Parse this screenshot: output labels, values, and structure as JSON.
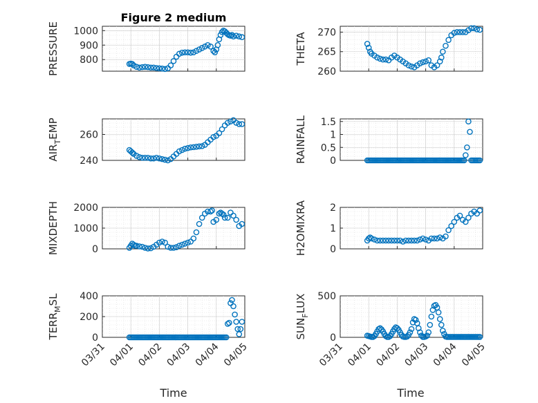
{
  "colors": {
    "marker": "#0072BD"
  },
  "figure": {
    "title": "Figure 2 medium",
    "xlabel_left": "Time",
    "xlabel_right": "Time"
  },
  "chart_data": [
    {
      "type": "scatter",
      "id": "pressure",
      "title": "Figure 2 medium",
      "ylabel": "PRESSURE",
      "ylabel_sub": "",
      "xlim": [
        0,
        5
      ],
      "ylim": [
        720,
        1030
      ],
      "yticks": [
        800,
        900,
        1000
      ],
      "ytick_labels": [
        "800",
        "900",
        "1000"
      ],
      "x": [
        0.95,
        1.0,
        1.05,
        1.1,
        1.2,
        1.3,
        1.4,
        1.5,
        1.6,
        1.7,
        1.8,
        1.9,
        2.0,
        2.1,
        2.2,
        2.3,
        2.4,
        2.5,
        2.6,
        2.7,
        2.8,
        2.9,
        3.0,
        3.1,
        3.2,
        3.3,
        3.4,
        3.5,
        3.6,
        3.7,
        3.8,
        3.9,
        3.95,
        4.0,
        4.05,
        4.1,
        4.15,
        4.2,
        4.25,
        4.3,
        4.35,
        4.4,
        4.45,
        4.5,
        4.55,
        4.6,
        4.7,
        4.8,
        4.9
      ],
      "y": [
        770,
        772,
        770,
        760,
        750,
        745,
        748,
        750,
        748,
        745,
        745,
        742,
        740,
        738,
        735,
        740,
        760,
        790,
        820,
        840,
        848,
        850,
        850,
        848,
        850,
        860,
        870,
        880,
        890,
        900,
        890,
        860,
        850,
        870,
        900,
        940,
        970,
        990,
        1000,
        995,
        985,
        975,
        968,
        965,
        970,
        960,
        965,
        960,
        955
      ]
    },
    {
      "type": "scatter",
      "id": "theta",
      "title": "",
      "ylabel": "THETA",
      "ylabel_sub": "",
      "xlim": [
        0,
        5
      ],
      "ylim": [
        260,
        271.5
      ],
      "yticks": [
        260,
        265,
        270
      ],
      "ytick_labels": [
        "260",
        "265",
        "270"
      ],
      "x": [
        0.95,
        1.0,
        1.05,
        1.1,
        1.2,
        1.3,
        1.4,
        1.5,
        1.6,
        1.7,
        1.8,
        1.9,
        2.0,
        2.1,
        2.2,
        2.3,
        2.4,
        2.5,
        2.6,
        2.7,
        2.8,
        2.9,
        3.0,
        3.1,
        3.2,
        3.3,
        3.4,
        3.5,
        3.55,
        3.6,
        3.7,
        3.8,
        3.9,
        4.0,
        4.1,
        4.2,
        4.3,
        4.4,
        4.5,
        4.6,
        4.7,
        4.8,
        4.9
      ],
      "y": [
        267,
        266,
        265,
        264.5,
        264,
        263.5,
        263.2,
        263,
        263,
        262.8,
        263.5,
        264,
        263.5,
        263,
        262.5,
        262,
        261.5,
        261.2,
        261,
        261.5,
        262,
        262.3,
        262.5,
        262.8,
        261.5,
        261,
        261.5,
        262.5,
        263.5,
        265,
        266.5,
        268,
        269.2,
        269.8,
        270,
        270,
        270,
        270,
        270.5,
        271,
        271,
        270.7,
        270.6
      ]
    },
    {
      "type": "scatter",
      "id": "air_temp",
      "title": "",
      "ylabel": "AIR",
      "ylabel_sub": "T",
      "ylabel_suffix": "EMP",
      "xlim": [
        0,
        5
      ],
      "ylim": [
        240,
        272
      ],
      "yticks": [
        240,
        260
      ],
      "ytick_labels": [
        "240",
        "260"
      ],
      "x": [
        0.95,
        1.0,
        1.05,
        1.1,
        1.2,
        1.3,
        1.4,
        1.5,
        1.6,
        1.7,
        1.8,
        1.9,
        2.0,
        2.1,
        2.2,
        2.3,
        2.4,
        2.5,
        2.6,
        2.7,
        2.8,
        2.9,
        3.0,
        3.1,
        3.2,
        3.3,
        3.4,
        3.5,
        3.6,
        3.7,
        3.8,
        3.9,
        4.0,
        4.1,
        4.2,
        4.3,
        4.4,
        4.5,
        4.6,
        4.7,
        4.8,
        4.9
      ],
      "y": [
        248,
        247,
        246,
        245,
        243.5,
        242.5,
        242,
        242,
        242,
        241.5,
        241.5,
        242,
        241.5,
        241,
        240.5,
        240,
        241,
        243,
        245,
        247,
        248,
        249,
        249.5,
        250,
        250.2,
        250.5,
        250.8,
        251,
        252,
        254,
        256,
        258,
        259,
        261,
        264,
        267,
        269,
        270,
        271,
        269,
        268,
        268
      ]
    },
    {
      "type": "scatter",
      "id": "rainfall",
      "title": "",
      "ylabel": "RAINFALL",
      "ylabel_sub": "",
      "xlim": [
        0,
        5
      ],
      "ylim": [
        0,
        1.6
      ],
      "yticks": [
        0,
        0.5,
        1,
        1.5
      ],
      "ytick_labels": [
        "0",
        "0.5",
        "1",
        "1.5"
      ],
      "x": [
        0.95,
        1.0,
        1.05,
        1.1,
        1.15,
        1.2,
        1.25,
        1.3,
        1.35,
        1.4,
        1.45,
        1.5,
        1.55,
        1.6,
        1.65,
        1.7,
        1.75,
        1.8,
        1.85,
        1.9,
        1.95,
        2.0,
        2.05,
        2.1,
        2.15,
        2.2,
        2.25,
        2.3,
        2.35,
        2.4,
        2.45,
        2.5,
        2.55,
        2.6,
        2.65,
        2.7,
        2.75,
        2.8,
        2.85,
        2.9,
        2.95,
        3.0,
        3.05,
        3.1,
        3.15,
        3.2,
        3.25,
        3.3,
        3.35,
        3.4,
        3.45,
        3.5,
        3.55,
        3.6,
        3.65,
        3.7,
        3.75,
        3.8,
        3.85,
        3.9,
        3.95,
        4.0,
        4.05,
        4.1,
        4.15,
        4.2,
        4.25,
        4.3,
        4.35,
        4.4,
        4.45,
        4.5,
        4.55,
        4.6,
        4.65,
        4.7,
        4.75,
        4.8,
        4.85,
        4.9
      ],
      "y": [
        0,
        0,
        0,
        0,
        0,
        0,
        0,
        0,
        0,
        0,
        0,
        0,
        0,
        0,
        0,
        0,
        0,
        0,
        0,
        0,
        0,
        0,
        0,
        0,
        0,
        0,
        0,
        0,
        0,
        0,
        0,
        0,
        0,
        0,
        0,
        0,
        0,
        0,
        0,
        0,
        0,
        0,
        0,
        0,
        0,
        0,
        0,
        0,
        0,
        0,
        0,
        0,
        0,
        0,
        0,
        0,
        0,
        0,
        0,
        0,
        0,
        0,
        0,
        0,
        0,
        0,
        0,
        0,
        0,
        0.2,
        0.5,
        1.5,
        1.1,
        0,
        0,
        0,
        0,
        0,
        0,
        0
      ]
    },
    {
      "type": "scatter",
      "id": "mixdepth",
      "title": "",
      "ylabel": "MIXDEPTH",
      "ylabel_sub": "",
      "xlim": [
        0,
        5
      ],
      "ylim": [
        0,
        2000
      ],
      "yticks": [
        0,
        1000,
        2000
      ],
      "ytick_labels": [
        "0",
        "1000",
        "2000"
      ],
      "x": [
        0.95,
        1.0,
        1.05,
        1.1,
        1.15,
        1.2,
        1.3,
        1.4,
        1.5,
        1.6,
        1.7,
        1.8,
        1.9,
        2.0,
        2.1,
        2.2,
        2.3,
        2.4,
        2.5,
        2.6,
        2.7,
        2.8,
        2.9,
        3.0,
        3.1,
        3.2,
        3.3,
        3.4,
        3.5,
        3.6,
        3.7,
        3.8,
        3.85,
        3.9,
        4.0,
        4.1,
        4.15,
        4.2,
        4.25,
        4.3,
        4.4,
        4.5,
        4.6,
        4.7,
        4.8,
        4.9
      ],
      "y": [
        50,
        150,
        250,
        200,
        150,
        150,
        120,
        100,
        50,
        20,
        30,
        100,
        200,
        300,
        350,
        300,
        100,
        50,
        50,
        80,
        150,
        200,
        250,
        300,
        350,
        500,
        800,
        1200,
        1500,
        1700,
        1800,
        1800,
        1850,
        1300,
        1400,
        1700,
        1750,
        1700,
        1650,
        1500,
        1500,
        1750,
        1600,
        1400,
        1100,
        1200
      ]
    },
    {
      "type": "scatter",
      "id": "h2omixra",
      "title": "",
      "ylabel": "H2OMIXRA",
      "ylabel_sub": "",
      "xlim": [
        0,
        5
      ],
      "ylim": [
        0,
        2
      ],
      "yticks": [
        0,
        1,
        2
      ],
      "ytick_labels": [
        "0",
        "1",
        "2"
      ],
      "x": [
        0.95,
        1.0,
        1.05,
        1.1,
        1.2,
        1.3,
        1.4,
        1.5,
        1.6,
        1.7,
        1.8,
        1.9,
        2.0,
        2.1,
        2.2,
        2.3,
        2.4,
        2.5,
        2.6,
        2.7,
        2.8,
        2.9,
        3.0,
        3.1,
        3.2,
        3.3,
        3.4,
        3.5,
        3.6,
        3.7,
        3.8,
        3.9,
        4.0,
        4.1,
        4.2,
        4.3,
        4.4,
        4.5,
        4.6,
        4.7,
        4.8,
        4.9
      ],
      "y": [
        0.4,
        0.5,
        0.55,
        0.5,
        0.45,
        0.4,
        0.4,
        0.4,
        0.4,
        0.4,
        0.4,
        0.4,
        0.4,
        0.4,
        0.35,
        0.4,
        0.4,
        0.4,
        0.4,
        0.4,
        0.45,
        0.5,
        0.45,
        0.4,
        0.5,
        0.5,
        0.5,
        0.55,
        0.5,
        0.6,
        0.9,
        1.1,
        1.3,
        1.5,
        1.6,
        1.4,
        1.3,
        1.5,
        1.7,
        1.8,
        1.7,
        1.85
      ]
    },
    {
      "type": "scatter",
      "id": "terr_msl",
      "title": "",
      "ylabel": "TERR",
      "ylabel_sub": "M",
      "ylabel_suffix": "SL",
      "xlim": [
        0,
        5
      ],
      "ylim": [
        0,
        400
      ],
      "yticks": [
        0,
        200,
        400
      ],
      "ytick_labels": [
        "0",
        "200",
        "400"
      ],
      "x": [
        0.95,
        1.0,
        1.05,
        1.1,
        1.15,
        1.2,
        1.25,
        1.3,
        1.35,
        1.4,
        1.45,
        1.5,
        1.55,
        1.6,
        1.65,
        1.7,
        1.75,
        1.8,
        1.85,
        1.9,
        1.95,
        2.0,
        2.05,
        2.1,
        2.15,
        2.2,
        2.25,
        2.3,
        2.35,
        2.4,
        2.45,
        2.5,
        2.55,
        2.6,
        2.65,
        2.7,
        2.75,
        2.8,
        2.85,
        2.9,
        2.95,
        3.0,
        3.05,
        3.1,
        3.15,
        3.2,
        3.25,
        3.3,
        3.35,
        3.4,
        3.45,
        3.5,
        3.55,
        3.6,
        3.65,
        3.7,
        3.75,
        3.8,
        3.85,
        3.9,
        3.95,
        4.0,
        4.05,
        4.1,
        4.15,
        4.2,
        4.25,
        4.3,
        4.35,
        4.4,
        4.45,
        4.5,
        4.55,
        4.6,
        4.65,
        4.7,
        4.75,
        4.8,
        4.85,
        4.9
      ],
      "y": [
        0,
        0,
        0,
        0,
        0,
        0,
        0,
        0,
        0,
        0,
        0,
        0,
        0,
        0,
        0,
        0,
        0,
        0,
        0,
        0,
        0,
        0,
        0,
        0,
        0,
        0,
        0,
        0,
        0,
        0,
        0,
        0,
        0,
        0,
        0,
        0,
        0,
        0,
        0,
        0,
        0,
        0,
        0,
        0,
        0,
        0,
        0,
        0,
        0,
        0,
        0,
        0,
        0,
        0,
        0,
        0,
        0,
        0,
        0,
        0,
        0,
        0,
        0,
        0,
        0,
        0,
        0,
        0,
        0,
        130,
        140,
        330,
        360,
        300,
        220,
        150,
        80,
        30,
        80,
        150
      ]
    },
    {
      "type": "scatter",
      "id": "sun_flux",
      "title": "",
      "ylabel": "SUN",
      "ylabel_sub": "F",
      "ylabel_suffix": "LUX",
      "xlim": [
        0,
        5
      ],
      "ylim": [
        0,
        500
      ],
      "yticks": [
        0,
        500
      ],
      "ytick_labels": [
        "0",
        "500"
      ],
      "x": [
        0.95,
        1.0,
        1.05,
        1.1,
        1.15,
        1.2,
        1.25,
        1.3,
        1.35,
        1.4,
        1.45,
        1.5,
        1.55,
        1.6,
        1.65,
        1.7,
        1.75,
        1.8,
        1.85,
        1.9,
        1.95,
        2.0,
        2.05,
        2.1,
        2.15,
        2.2,
        2.25,
        2.3,
        2.35,
        2.4,
        2.45,
        2.5,
        2.55,
        2.6,
        2.65,
        2.7,
        2.75,
        2.8,
        2.85,
        2.9,
        2.95,
        3.0,
        3.05,
        3.1,
        3.15,
        3.2,
        3.25,
        3.3,
        3.35,
        3.4,
        3.45,
        3.5,
        3.55,
        3.6,
        3.65,
        3.7,
        3.75,
        3.8,
        3.85,
        3.9,
        3.95,
        4.0,
        4.05,
        4.1,
        4.15,
        4.2,
        4.25,
        4.3,
        4.35,
        4.4,
        4.45,
        4.5,
        4.55,
        4.6,
        4.65,
        4.7,
        4.75,
        4.8,
        4.85,
        4.9
      ],
      "y": [
        20,
        15,
        10,
        5,
        5,
        15,
        40,
        70,
        100,
        110,
        95,
        70,
        40,
        15,
        5,
        5,
        15,
        40,
        70,
        100,
        120,
        110,
        90,
        60,
        30,
        10,
        5,
        5,
        10,
        30,
        60,
        100,
        180,
        220,
        210,
        170,
        110,
        60,
        20,
        5,
        5,
        10,
        20,
        60,
        150,
        250,
        330,
        380,
        390,
        360,
        300,
        220,
        150,
        80,
        40,
        10,
        5,
        5,
        5,
        5,
        5,
        5,
        5,
        5,
        5,
        5,
        5,
        5,
        5,
        5,
        5,
        5,
        5,
        5,
        5,
        5,
        5,
        5,
        5,
        5
      ]
    }
  ],
  "xaxis": {
    "tick_values": [
      0,
      1,
      2,
      3,
      4,
      5
    ],
    "tick_labels": [
      "03/31",
      "04/01",
      "04/02",
      "04/03",
      "04/04",
      "04/05"
    ]
  }
}
